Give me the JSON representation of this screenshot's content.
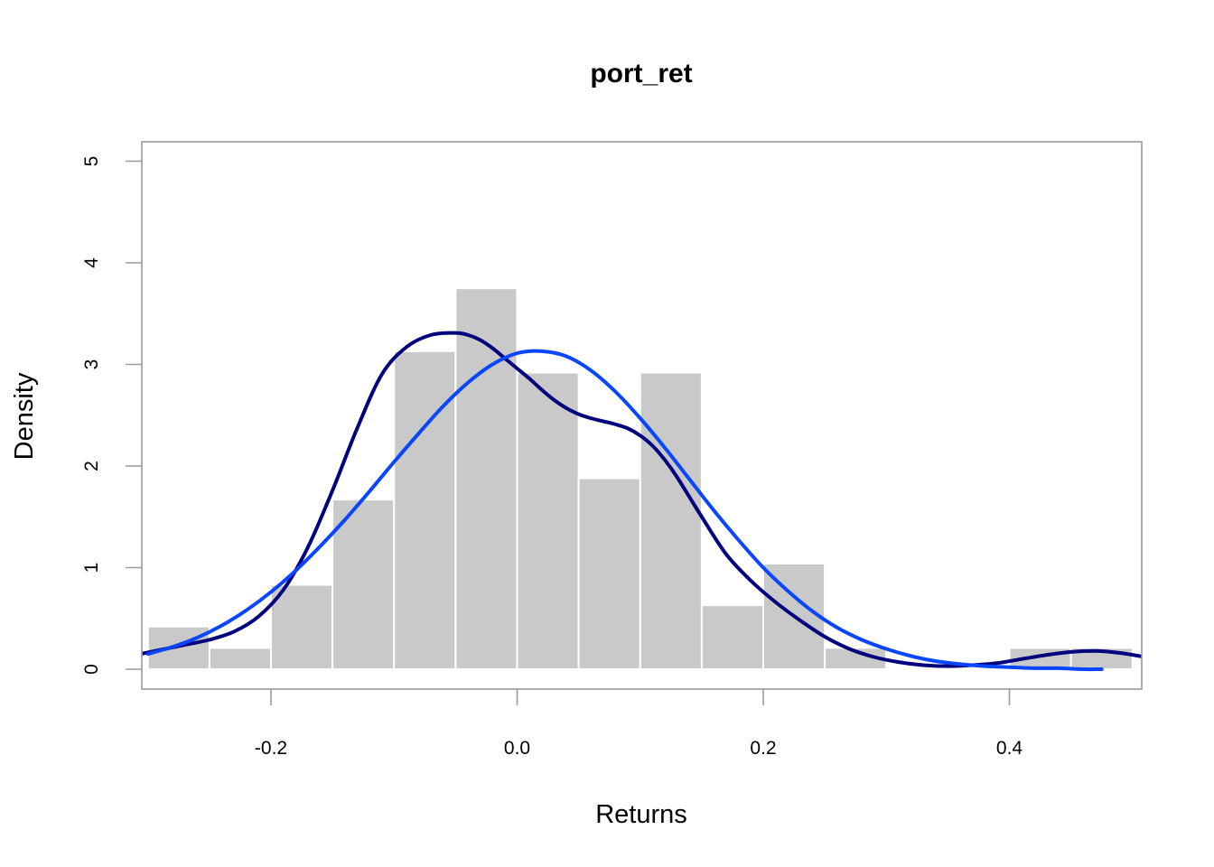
{
  "chart_data": {
    "type": "bar",
    "subtype": "histogram-with-density",
    "title": "port_ret",
    "xlabel": "Returns",
    "ylabel": "Density",
    "xlim": [
      -0.3,
      0.5
    ],
    "ylim": [
      0,
      5
    ],
    "x_ticks": [
      -0.2,
      0.0,
      0.2,
      0.4
    ],
    "x_tick_labels": [
      "-0.2",
      "0.0",
      "0.2",
      "0.4"
    ],
    "y_ticks": [
      0,
      1,
      2,
      3,
      4,
      5
    ],
    "y_tick_labels": [
      "0",
      "1",
      "2",
      "3",
      "4",
      "5"
    ],
    "grid": false,
    "bars": [
      {
        "x0": -0.3,
        "x1": -0.25,
        "value": 0.42
      },
      {
        "x0": -0.25,
        "x1": -0.2,
        "value": 0.21
      },
      {
        "x0": -0.2,
        "x1": -0.15,
        "value": 0.83
      },
      {
        "x0": -0.15,
        "x1": -0.1,
        "value": 1.67
      },
      {
        "x0": -0.1,
        "x1": -0.05,
        "value": 3.13
      },
      {
        "x0": -0.05,
        "x1": 0.0,
        "value": 3.75
      },
      {
        "x0": 0.0,
        "x1": 0.05,
        "value": 2.92
      },
      {
        "x0": 0.05,
        "x1": 0.1,
        "value": 1.88
      },
      {
        "x0": 0.1,
        "x1": 0.15,
        "value": 2.92
      },
      {
        "x0": 0.15,
        "x1": 0.2,
        "value": 0.63
      },
      {
        "x0": 0.2,
        "x1": 0.25,
        "value": 1.04
      },
      {
        "x0": 0.25,
        "x1": 0.3,
        "value": 0.21
      },
      {
        "x0": 0.3,
        "x1": 0.35,
        "value": 0.0
      },
      {
        "x0": 0.35,
        "x1": 0.4,
        "value": 0.0
      },
      {
        "x0": 0.4,
        "x1": 0.45,
        "value": 0.21
      },
      {
        "x0": 0.45,
        "x1": 0.5,
        "value": 0.21
      }
    ],
    "series": [
      {
        "color": "#00007f",
        "x": [
          -0.31,
          -0.29,
          -0.27,
          -0.25,
          -0.23,
          -0.21,
          -0.19,
          -0.17,
          -0.15,
          -0.13,
          -0.11,
          -0.09,
          -0.07,
          -0.05,
          -0.04,
          -0.03,
          -0.02,
          -0.01,
          0.0,
          0.01,
          0.02,
          0.03,
          0.04,
          0.05,
          0.06,
          0.07,
          0.08,
          0.09,
          0.1,
          0.11,
          0.12,
          0.13,
          0.15,
          0.17,
          0.19,
          0.21,
          0.23,
          0.25,
          0.27,
          0.29,
          0.31,
          0.33,
          0.35,
          0.37,
          0.39,
          0.41,
          0.43,
          0.45,
          0.47,
          0.49,
          0.51
        ],
        "y": [
          0.14,
          0.19,
          0.24,
          0.29,
          0.37,
          0.52,
          0.78,
          1.2,
          1.76,
          2.37,
          2.9,
          3.17,
          3.29,
          3.31,
          3.29,
          3.24,
          3.16,
          3.06,
          2.96,
          2.86,
          2.75,
          2.65,
          2.57,
          2.51,
          2.47,
          2.44,
          2.41,
          2.37,
          2.3,
          2.2,
          2.06,
          1.89,
          1.5,
          1.13,
          0.87,
          0.66,
          0.48,
          0.32,
          0.2,
          0.12,
          0.07,
          0.04,
          0.03,
          0.04,
          0.06,
          0.1,
          0.14,
          0.17,
          0.18,
          0.16,
          0.12
        ]
      },
      {
        "color": "#0a45ff",
        "x": [
          -0.3,
          -0.28,
          -0.26,
          -0.24,
          -0.22,
          -0.2,
          -0.18,
          -0.16,
          -0.14,
          -0.12,
          -0.1,
          -0.08,
          -0.06,
          -0.04,
          -0.02,
          0.0,
          0.02,
          0.04,
          0.06,
          0.08,
          0.1,
          0.12,
          0.14,
          0.16,
          0.18,
          0.2,
          0.22,
          0.24,
          0.26,
          0.28,
          0.3,
          0.32,
          0.34,
          0.36,
          0.38,
          0.4,
          0.42,
          0.44,
          0.46,
          0.475
        ],
        "y": [
          0.15,
          0.22,
          0.31,
          0.43,
          0.58,
          0.76,
          0.97,
          1.21,
          1.47,
          1.75,
          2.04,
          2.32,
          2.59,
          2.82,
          3.0,
          3.11,
          3.13,
          3.08,
          2.94,
          2.73,
          2.47,
          2.18,
          1.87,
          1.56,
          1.27,
          1.0,
          0.77,
          0.57,
          0.41,
          0.29,
          0.2,
          0.13,
          0.08,
          0.05,
          0.03,
          0.02,
          0.01,
          0.01,
          0.0,
          0.0
        ]
      }
    ]
  }
}
